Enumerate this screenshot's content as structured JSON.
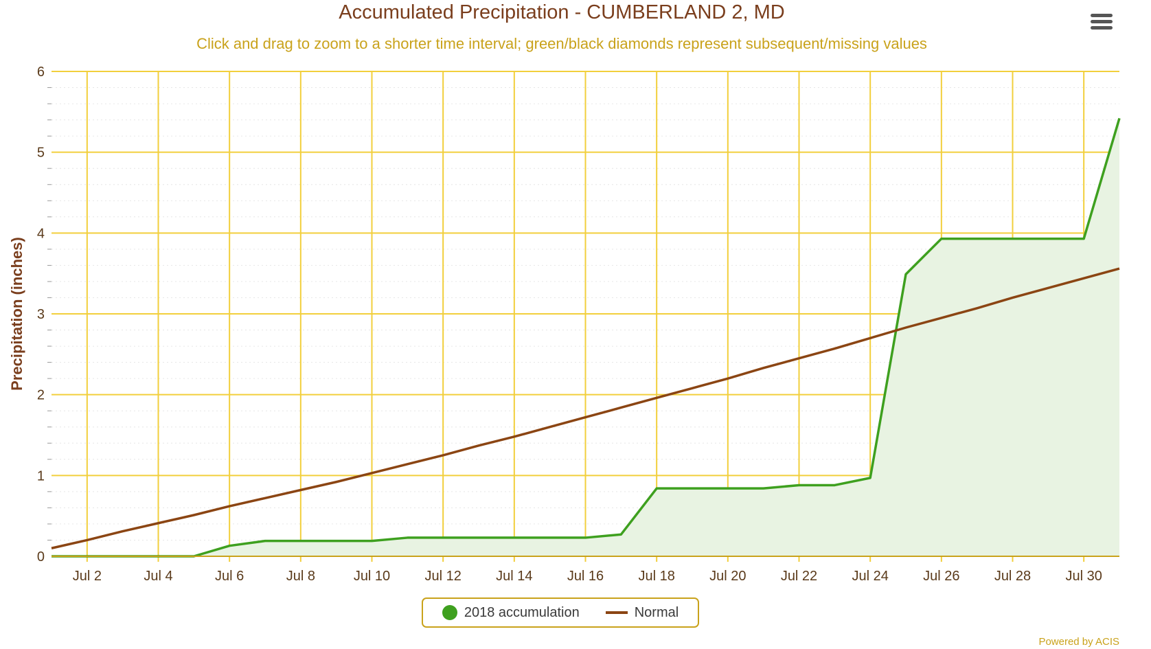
{
  "title": "Accumulated Precipitation - CUMBERLAND 2, MD",
  "subtitle": "Click and drag to zoom to a shorter time interval; green/black diamonds represent subsequent/missing values",
  "menu_icon": "hamburger-menu-icon",
  "credits": "Powered by ACIS",
  "colors": {
    "title": "#7a3e1d",
    "subtitle": "#c9a21b",
    "grid": "#f2cf3c",
    "accum_line": "#3ea01f",
    "accum_fill": "#e8f3e2",
    "normal_line": "#8b4513"
  },
  "legend": [
    {
      "label": "2018 accumulation",
      "symbol": "circle",
      "color": "#3ea01f"
    },
    {
      "label": "Normal",
      "symbol": "line",
      "color": "#8b4513"
    }
  ],
  "chart_data": {
    "type": "area",
    "ylabel": "Precipitation (inches)",
    "xlabel": "",
    "x_range": [
      1,
      31
    ],
    "ylim": [
      0,
      6
    ],
    "y_ticks": [
      0,
      1,
      2,
      3,
      4,
      5,
      6
    ],
    "x_ticks": [
      {
        "day": 2,
        "label": "Jul 2"
      },
      {
        "day": 4,
        "label": "Jul 4"
      },
      {
        "day": 6,
        "label": "Jul 6"
      },
      {
        "day": 8,
        "label": "Jul 8"
      },
      {
        "day": 10,
        "label": "Jul 10"
      },
      {
        "day": 12,
        "label": "Jul 12"
      },
      {
        "day": 14,
        "label": "Jul 14"
      },
      {
        "day": 16,
        "label": "Jul 16"
      },
      {
        "day": 18,
        "label": "Jul 18"
      },
      {
        "day": 20,
        "label": "Jul 20"
      },
      {
        "day": 22,
        "label": "Jul 22"
      },
      {
        "day": 24,
        "label": "Jul 24"
      },
      {
        "day": 26,
        "label": "Jul 26"
      },
      {
        "day": 28,
        "label": "Jul 28"
      },
      {
        "day": 30,
        "label": "Jul 30"
      }
    ],
    "grid": true,
    "legend_position": "bottom-center",
    "series": [
      {
        "name": "2018 accumulation",
        "style": "area",
        "x": [
          1,
          2,
          3,
          4,
          5,
          6,
          7,
          8,
          9,
          10,
          11,
          12,
          13,
          14,
          15,
          16,
          17,
          18,
          19,
          20,
          21,
          22,
          23,
          24,
          25,
          26,
          27,
          28,
          29,
          30,
          31
        ],
        "values": [
          0,
          0,
          0,
          0,
          0,
          0.13,
          0.19,
          0.19,
          0.19,
          0.19,
          0.23,
          0.23,
          0.23,
          0.23,
          0.23,
          0.23,
          0.27,
          0.84,
          0.84,
          0.84,
          0.84,
          0.88,
          0.88,
          0.97,
          3.49,
          3.93,
          3.93,
          3.93,
          3.93,
          3.93,
          5.42
        ]
      },
      {
        "name": "Normal",
        "style": "line",
        "x": [
          1,
          2,
          3,
          4,
          5,
          6,
          7,
          8,
          9,
          10,
          11,
          12,
          13,
          14,
          15,
          16,
          17,
          18,
          19,
          20,
          21,
          22,
          23,
          24,
          25,
          26,
          27,
          28,
          29,
          30,
          31
        ],
        "values": [
          0.1,
          0.2,
          0.31,
          0.41,
          0.51,
          0.62,
          0.72,
          0.82,
          0.92,
          1.03,
          1.14,
          1.25,
          1.37,
          1.48,
          1.6,
          1.72,
          1.84,
          1.96,
          2.08,
          2.2,
          2.33,
          2.45,
          2.57,
          2.7,
          2.83,
          2.95,
          3.07,
          3.2,
          3.32,
          3.44,
          3.56
        ]
      }
    ]
  }
}
